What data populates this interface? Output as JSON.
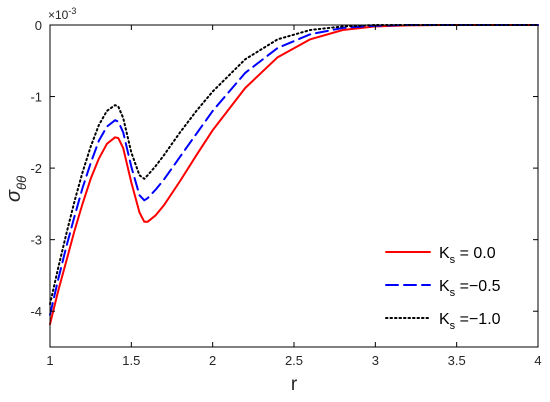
{
  "chart_data": {
    "type": "line",
    "title": "",
    "xlabel": "r",
    "ylabel_main": "σ",
    "ylabel_sub": "θθ",
    "y_multiplier_base": "×10",
    "y_multiplier_exp": "-3",
    "xlim": [
      1,
      4
    ],
    "ylim": [
      -4.5,
      0
    ],
    "x_ticks": [
      1,
      1.5,
      2,
      2.5,
      3,
      3.5,
      4
    ],
    "x_tick_labels": [
      "1",
      "1.5",
      "2",
      "2.5",
      "3",
      "3.5",
      "4"
    ],
    "y_ticks": [
      0,
      -1,
      -2,
      -3,
      -4
    ],
    "y_tick_labels": [
      "0",
      "-1",
      "-2",
      "-3",
      "-4"
    ],
    "grid": false,
    "legend_position": "bottom-right",
    "series": [
      {
        "name_main": "K",
        "name_sub": "s",
        "name_value": " = 0.0",
        "color": "#ff0000",
        "style": "solid",
        "x": [
          1.0,
          1.05,
          1.1,
          1.15,
          1.2,
          1.25,
          1.3,
          1.35,
          1.4,
          1.42,
          1.45,
          1.5,
          1.55,
          1.58,
          1.6,
          1.65,
          1.7,
          1.8,
          1.9,
          2.0,
          2.2,
          2.4,
          2.6,
          2.8,
          3.0,
          3.2,
          3.4,
          3.6,
          3.8,
          4.0
        ],
        "y": [
          -4.18,
          -3.72,
          -3.3,
          -2.88,
          -2.5,
          -2.15,
          -1.87,
          -1.66,
          -1.57,
          -1.58,
          -1.72,
          -2.2,
          -2.62,
          -2.75,
          -2.75,
          -2.66,
          -2.52,
          -2.18,
          -1.82,
          -1.47,
          -0.88,
          -0.45,
          -0.2,
          -0.07,
          -0.02,
          -0.005,
          0.0,
          0.0,
          0.0,
          0.0
        ]
      },
      {
        "name_main": "K",
        "name_sub": "s",
        "name_value": " =−0.5",
        "color": "#0000ff",
        "style": "dashed",
        "x": [
          1.0,
          1.05,
          1.1,
          1.15,
          1.2,
          1.25,
          1.3,
          1.35,
          1.4,
          1.42,
          1.45,
          1.5,
          1.55,
          1.58,
          1.6,
          1.65,
          1.7,
          1.8,
          1.9,
          2.0,
          2.2,
          2.4,
          2.6,
          2.8,
          3.0,
          3.2,
          3.4,
          3.6,
          3.8,
          4.0
        ],
        "y": [
          -4.05,
          -3.56,
          -3.1,
          -2.68,
          -2.28,
          -1.93,
          -1.62,
          -1.42,
          -1.33,
          -1.35,
          -1.5,
          -1.98,
          -2.38,
          -2.45,
          -2.42,
          -2.3,
          -2.16,
          -1.84,
          -1.52,
          -1.2,
          -0.67,
          -0.32,
          -0.13,
          -0.04,
          -0.01,
          0.0,
          0.0,
          0.0,
          0.0,
          0.0
        ]
      },
      {
        "name_main": "K",
        "name_sub": "s",
        "name_value": " =−1.0",
        "color": "#000000",
        "style": "dotted",
        "x": [
          1.0,
          1.05,
          1.1,
          1.15,
          1.2,
          1.25,
          1.3,
          1.35,
          1.4,
          1.42,
          1.45,
          1.5,
          1.55,
          1.58,
          1.6,
          1.65,
          1.7,
          1.8,
          1.9,
          2.0,
          2.2,
          2.4,
          2.6,
          2.8,
          3.0,
          3.2,
          3.4,
          3.6,
          3.8,
          4.0
        ],
        "y": [
          -3.9,
          -3.4,
          -2.92,
          -2.47,
          -2.06,
          -1.7,
          -1.4,
          -1.2,
          -1.12,
          -1.14,
          -1.3,
          -1.78,
          -2.1,
          -2.15,
          -2.1,
          -1.97,
          -1.82,
          -1.5,
          -1.2,
          -0.93,
          -0.48,
          -0.2,
          -0.07,
          -0.02,
          0.0,
          0.0,
          0.0,
          0.0,
          0.0,
          0.0
        ]
      }
    ]
  }
}
